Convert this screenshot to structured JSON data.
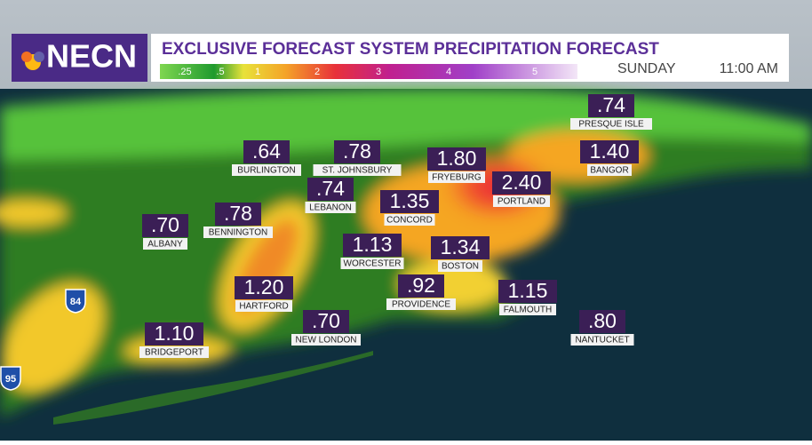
{
  "header": {
    "logo": "NECN",
    "title": "EXCLUSIVE FORECAST SYSTEM PRECIPITATION FORECAST",
    "day": "SUNDAY",
    "time": "11:00 AM",
    "legend": [
      ".25",
      ".5",
      "1",
      "2",
      "3",
      "4",
      "5"
    ]
  },
  "cities": [
    {
      "value": ".74",
      "name": "PRESQUE ISLE"
    },
    {
      "value": ".64",
      "name": "BURLINGTON"
    },
    {
      "value": ".78",
      "name": "ST. JOHNSBURY"
    },
    {
      "value": "1.80",
      "name": "FRYEBURG"
    },
    {
      "value": "1.40",
      "name": "BANGOR"
    },
    {
      "value": "2.40",
      "name": "PORTLAND"
    },
    {
      "value": ".74",
      "name": "LEBANON"
    },
    {
      "value": "1.35",
      "name": "CONCORD"
    },
    {
      "value": ".70",
      "name": "ALBANY"
    },
    {
      "value": ".78",
      "name": "BENNINGTON"
    },
    {
      "value": "1.13",
      "name": "WORCESTER"
    },
    {
      "value": "1.34",
      "name": "BOSTON"
    },
    {
      "value": "1.20",
      "name": "HARTFORD"
    },
    {
      "value": ".92",
      "name": "PROVIDENCE"
    },
    {
      "value": "1.15",
      "name": "FALMOUTH"
    },
    {
      "value": ".70",
      "name": "NEW LONDON"
    },
    {
      "value": "1.10",
      "name": "BRIDGEPORT"
    },
    {
      "value": ".80",
      "name": "NANTUCKET"
    }
  ],
  "highways": [
    "84",
    "95"
  ]
}
